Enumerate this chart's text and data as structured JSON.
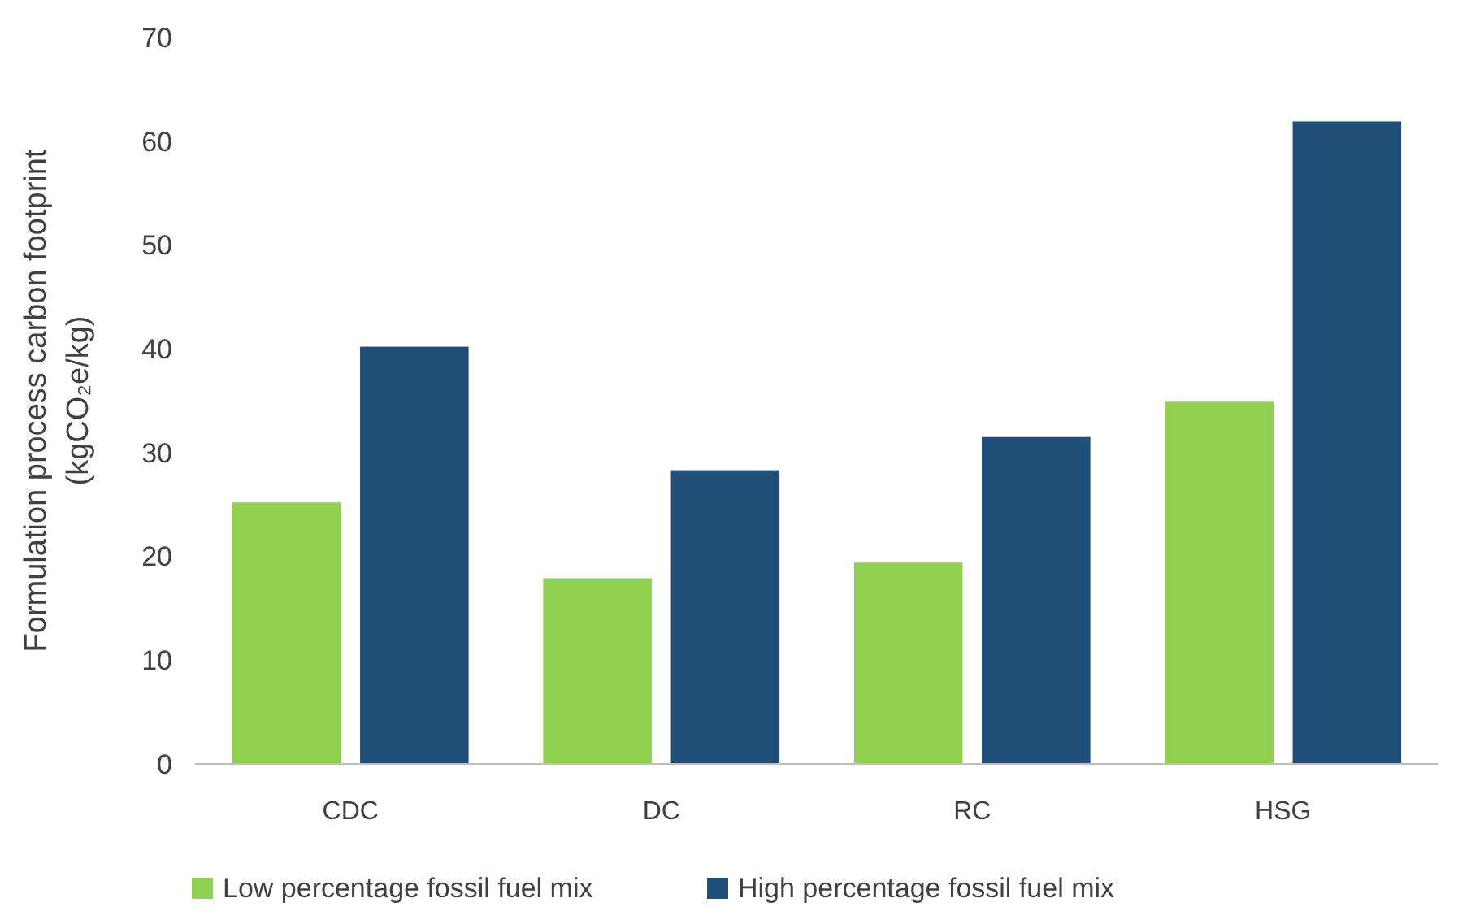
{
  "chart_data": {
    "type": "bar",
    "ylabel": "Formulation process carbon footprint\n(kgCO₂e/kg)",
    "categories": [
      "CDC",
      "DC",
      "RC",
      "HSG"
    ],
    "series": [
      {
        "name": "Low percentage fossil fuel mix",
        "color": "#92d050",
        "values": [
          25.2,
          17.9,
          19.4,
          34.9
        ]
      },
      {
        "name": "High percentage fossil fuel mix",
        "color": "#1f4e79",
        "values": [
          40.2,
          28.3,
          31.5,
          61.9
        ]
      }
    ],
    "ylim": [
      0,
      70
    ],
    "yticks": [
      0,
      10,
      20,
      30,
      40,
      50,
      60,
      70
    ],
    "grid": false,
    "legend": "bottom"
  }
}
